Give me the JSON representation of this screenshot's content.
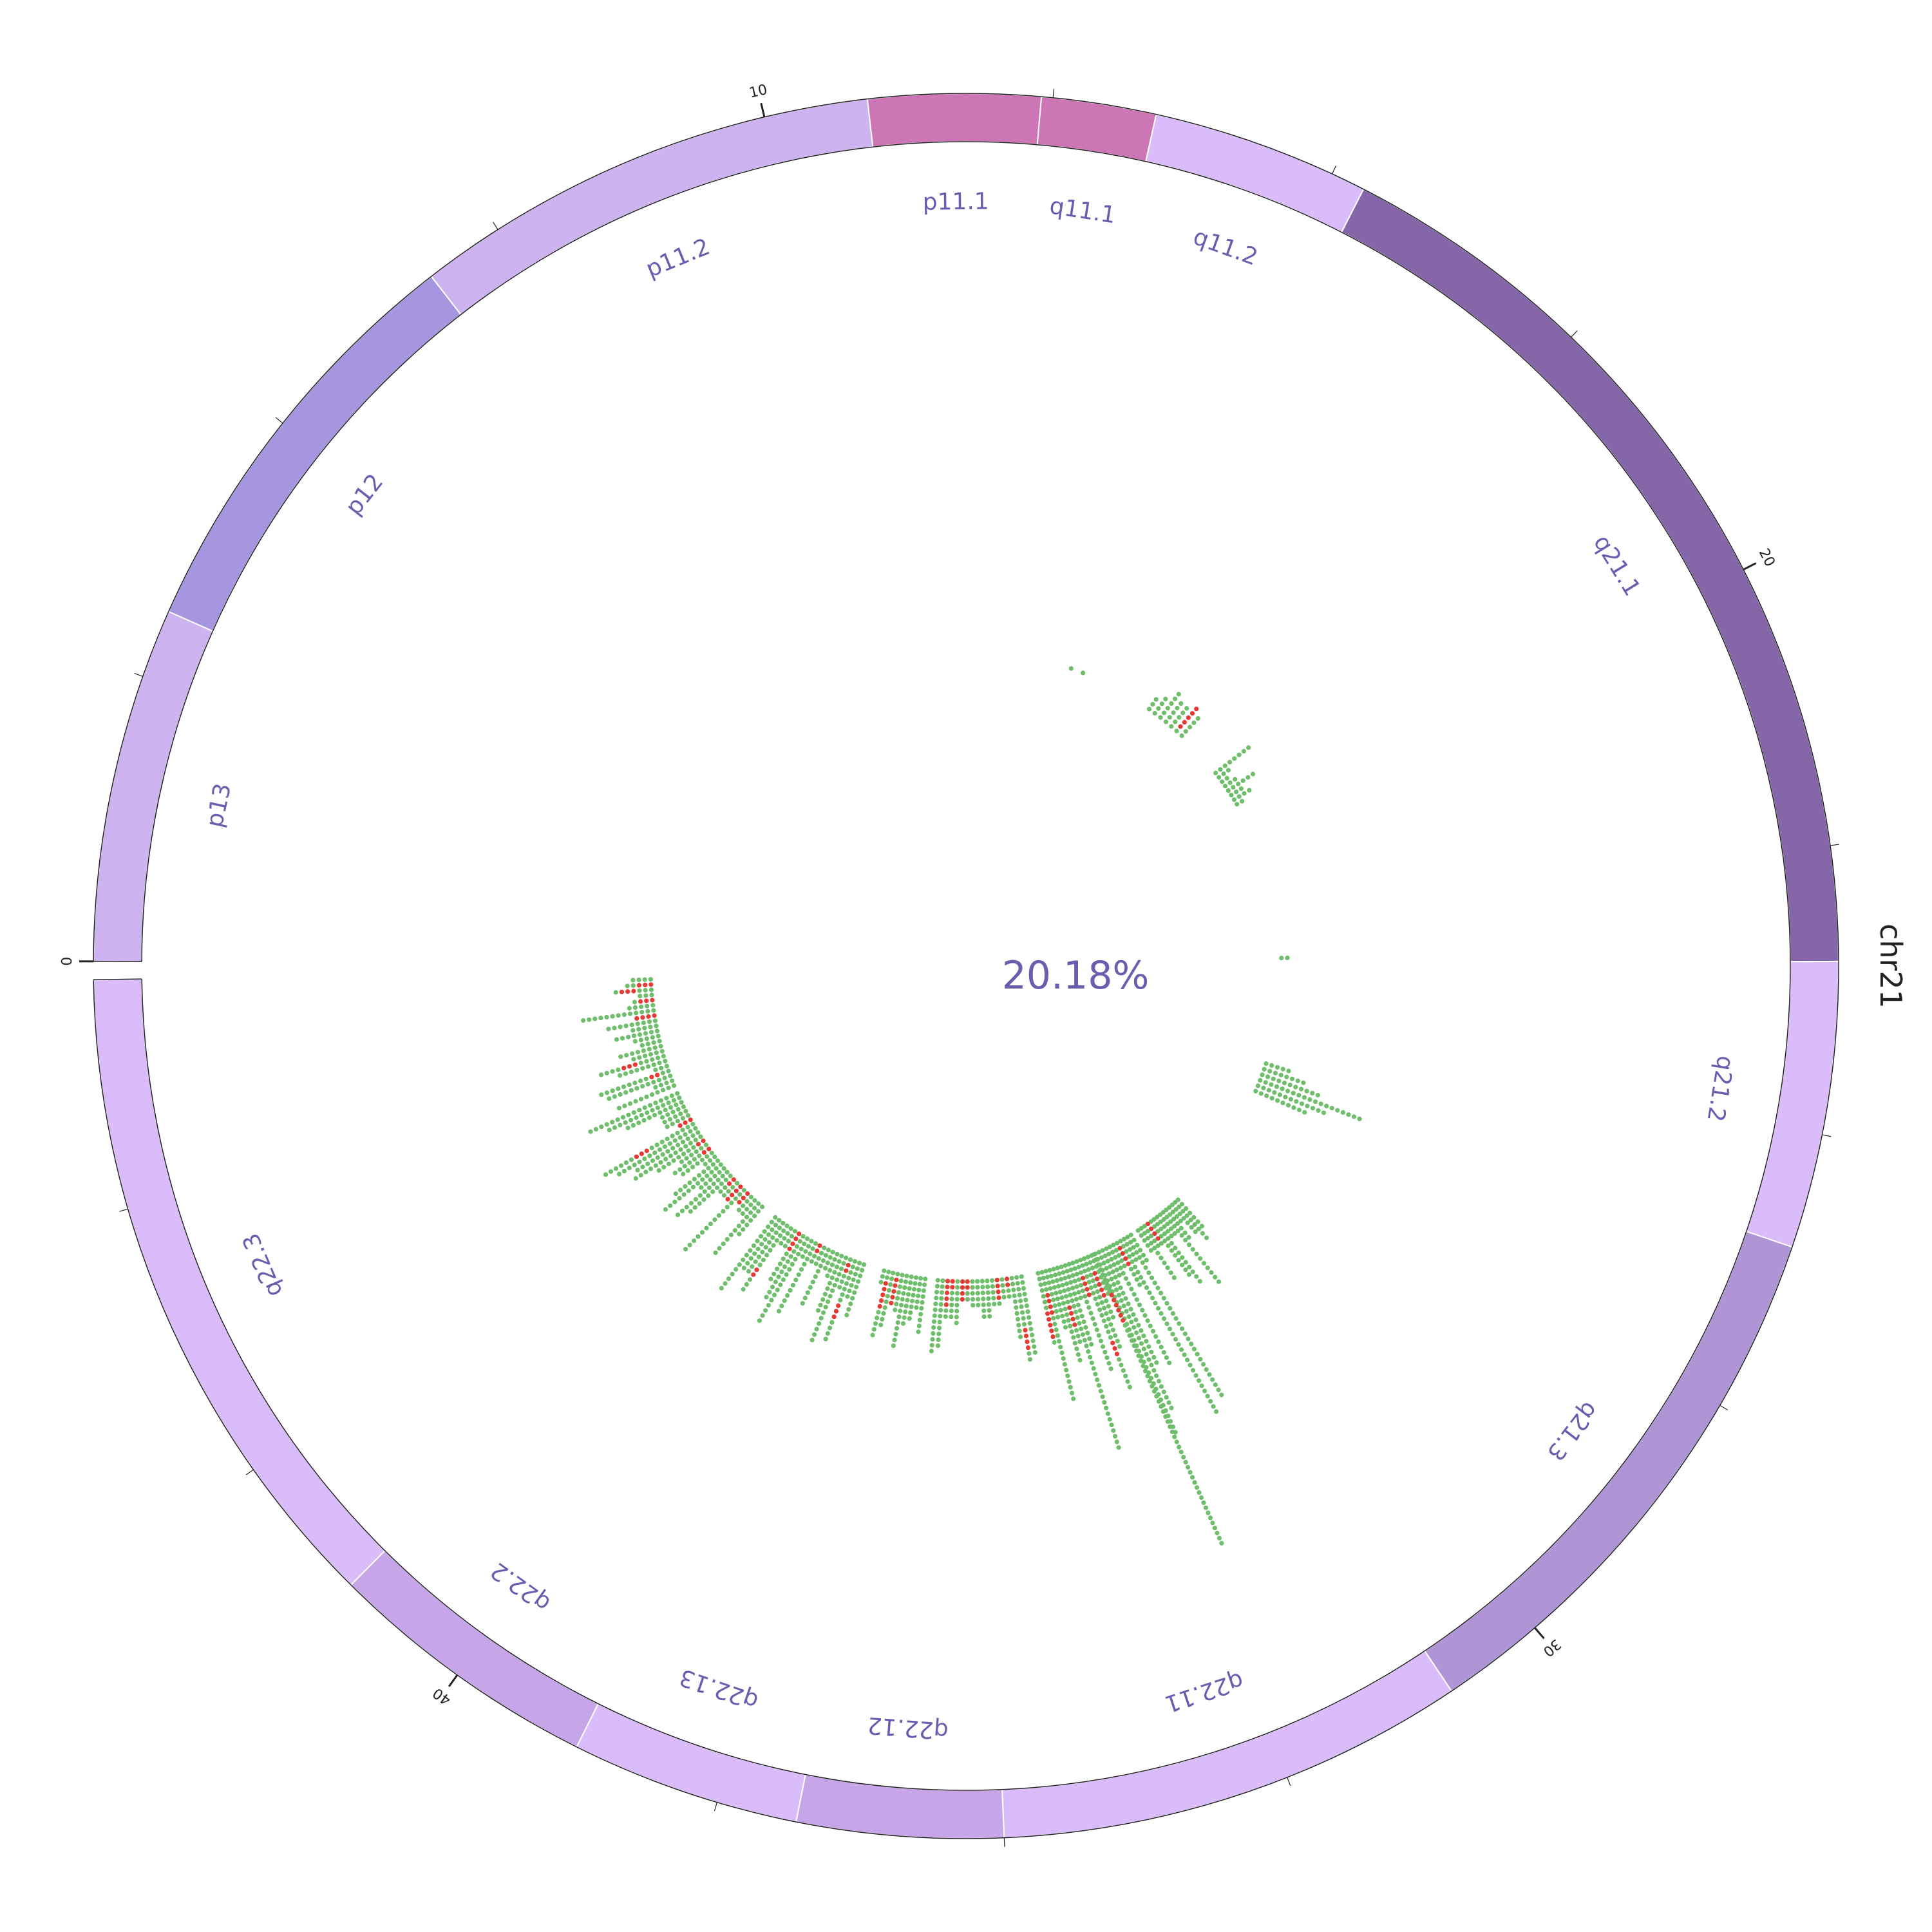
{
  "chromosome": {
    "name": "chr21",
    "length_mb": 47
  },
  "center_text": "20.18%",
  "tick_labels": [
    "0",
    "10",
    "20",
    "30",
    "40"
  ],
  "bands": [
    {
      "name": "p13",
      "start": 0.0,
      "end": 3.1,
      "color": "#cdb3ef"
    },
    {
      "name": "p12",
      "start": 3.1,
      "end": 6.8,
      "color": "#a695df"
    },
    {
      "name": "p11.2",
      "start": 6.8,
      "end": 10.9,
      "color": "#cdb3ef"
    },
    {
      "name": "p11.1",
      "start": 10.9,
      "end": 12.4,
      "color": "#cc76b6"
    },
    {
      "name": "q11.1",
      "start": 12.4,
      "end": 13.4,
      "color": "#cc76b6"
    },
    {
      "name": "q11.2",
      "start": 13.4,
      "end": 15.3,
      "color": "#dbbcfb"
    },
    {
      "name": "q21.1",
      "start": 15.3,
      "end": 23.5,
      "color": "#8566a8"
    },
    {
      "name": "q21.2",
      "start": 23.5,
      "end": 26.0,
      "color": "#dbbcfb"
    },
    {
      "name": "q21.3",
      "start": 26.0,
      "end": 30.9,
      "color": "#b095d6"
    },
    {
      "name": "q22.11",
      "start": 30.9,
      "end": 35.0,
      "color": "#dbbcfb"
    },
    {
      "name": "q22.12",
      "start": 35.0,
      "end": 36.8,
      "color": "#c6a6e8"
    },
    {
      "name": "q22.13",
      "start": 36.8,
      "end": 38.8,
      "color": "#dbbcfb"
    },
    {
      "name": "q22.2",
      "start": 38.8,
      "end": 41.2,
      "color": "#c6a6e8"
    },
    {
      "name": "q22.3",
      "start": 41.2,
      "end": 47.0,
      "color": "#dbbcfb"
    }
  ],
  "track_colors": {
    "green": "#6fbe6c",
    "red": "#e63a35"
  },
  "scatter_note_units": "position in Mb, radial level from inner base"
}
